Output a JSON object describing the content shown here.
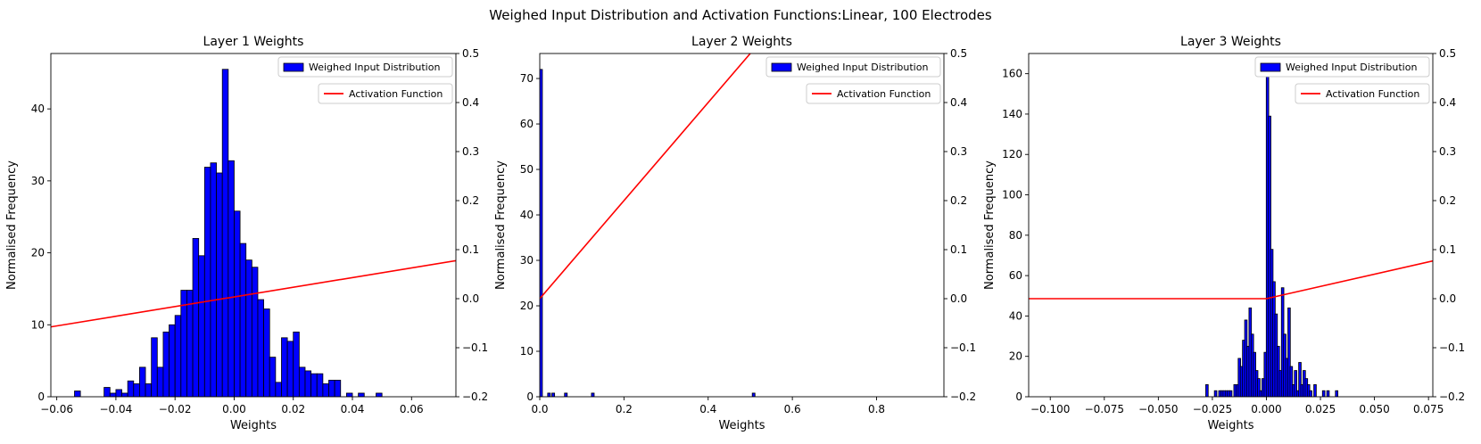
{
  "suptitle": "Weighed Input Distribution and Activation Functions:Linear, 100 Electrodes",
  "colors": {
    "bar_fill": "#0000ff",
    "bar_edge": "#000000",
    "activation_line": "#ff0000"
  },
  "chart_data": [
    {
      "type": "bar",
      "title": "Layer 1 Weights",
      "xlabel": "Weights",
      "ylabel": "Normalised Frequency",
      "xlim": [
        -0.062,
        0.075
      ],
      "ylim": [
        0,
        47.7
      ],
      "xticks": [
        -0.06,
        -0.04,
        -0.02,
        0.0,
        0.02,
        0.04,
        0.06
      ],
      "xtick_labels": [
        "−0.06",
        "−0.04",
        "−0.02",
        "0.00",
        "0.02",
        "0.04",
        "0.06"
      ],
      "yticks": [
        0,
        10,
        20,
        30,
        40
      ],
      "ytick_labels": [
        "0",
        "10",
        "20",
        "30",
        "40"
      ],
      "y2lim": [
        -0.2,
        0.5
      ],
      "y2ticks": [
        -0.2,
        -0.1,
        0.0,
        0.1,
        0.2,
        0.3,
        0.4,
        0.5
      ],
      "y2tick_labels": [
        "−0.2",
        "−0.1",
        "0.0",
        "0.1",
        "0.2",
        "0.3",
        "0.4",
        "0.5"
      ],
      "bin_width": 0.002,
      "bins": [
        [
          -0.053,
          0.8
        ],
        [
          -0.043,
          1.3
        ],
        [
          -0.041,
          0.5
        ],
        [
          -0.039,
          1.0
        ],
        [
          -0.037,
          0.5
        ],
        [
          -0.035,
          2.2
        ],
        [
          -0.033,
          1.8
        ],
        [
          -0.031,
          4.1
        ],
        [
          -0.029,
          1.8
        ],
        [
          -0.027,
          8.2
        ],
        [
          -0.025,
          4.1
        ],
        [
          -0.023,
          9.0
        ],
        [
          -0.021,
          10.0
        ],
        [
          -0.019,
          11.3
        ],
        [
          -0.017,
          14.8
        ],
        [
          -0.015,
          14.8
        ],
        [
          -0.013,
          22.0
        ],
        [
          -0.011,
          19.6
        ],
        [
          -0.009,
          31.9
        ],
        [
          -0.007,
          32.5
        ],
        [
          -0.005,
          31.1
        ],
        [
          -0.003,
          45.5
        ],
        [
          -0.001,
          32.8
        ],
        [
          0.001,
          25.8
        ],
        [
          0.003,
          21.3
        ],
        [
          0.005,
          19.0
        ],
        [
          0.007,
          18.0
        ],
        [
          0.009,
          13.5
        ],
        [
          0.011,
          12.2
        ],
        [
          0.013,
          5.5
        ],
        [
          0.015,
          2.0
        ],
        [
          0.017,
          8.2
        ],
        [
          0.019,
          7.7
        ],
        [
          0.021,
          9.0
        ],
        [
          0.023,
          4.1
        ],
        [
          0.025,
          3.6
        ],
        [
          0.027,
          3.2
        ],
        [
          0.029,
          3.2
        ],
        [
          0.031,
          1.8
        ],
        [
          0.033,
          2.3
        ],
        [
          0.035,
          2.3
        ],
        [
          0.039,
          0.5
        ],
        [
          0.043,
          0.5
        ],
        [
          0.049,
          0.5
        ]
      ],
      "legend": [
        {
          "label": "Weighed Input Distribution",
          "kind": "patch"
        },
        {
          "label": "Activation Function",
          "kind": "line"
        }
      ],
      "legend_placement": "top-right",
      "activation": {
        "x": [
          -0.062,
          0.075
        ],
        "y": [
          -0.0575,
          0.0775
        ]
      }
    },
    {
      "type": "bar",
      "title": "Layer 2 Weights",
      "xlabel": "Weights",
      "ylabel": "Normalised Frequency",
      "xlim": [
        0,
        0.96
      ],
      "ylim": [
        0,
        75.5
      ],
      "xticks": [
        0.0,
        0.2,
        0.4,
        0.6,
        0.8
      ],
      "xtick_labels": [
        "0.0",
        "0.2",
        "0.4",
        "0.6",
        "0.8"
      ],
      "yticks": [
        0,
        10,
        20,
        30,
        40,
        50,
        60,
        70
      ],
      "ytick_labels": [
        "0",
        "10",
        "20",
        "30",
        "40",
        "50",
        "60",
        "70"
      ],
      "y2lim": [
        -0.2,
        0.5
      ],
      "y2ticks": [
        -0.2,
        -0.1,
        0.0,
        0.1,
        0.2,
        0.3,
        0.4,
        0.5
      ],
      "y2tick_labels": [
        "−0.2",
        "−0.1",
        "0.0",
        "0.1",
        "0.2",
        "0.3",
        "0.4",
        "0.5"
      ],
      "bin_width": 0.0065,
      "bins": [
        [
          0.003,
          72.0
        ],
        [
          0.022,
          0.8
        ],
        [
          0.032,
          0.8
        ],
        [
          0.062,
          0.8
        ],
        [
          0.126,
          0.8
        ],
        [
          0.508,
          0.8
        ]
      ],
      "legend": [
        {
          "label": "Weighed Input Distribution",
          "kind": "patch"
        },
        {
          "label": "Activation Function",
          "kind": "line"
        }
      ],
      "legend_placement": "top-right",
      "activation": {
        "x": [
          0,
          0.5
        ],
        "y": [
          0.0,
          0.5
        ]
      }
    },
    {
      "type": "bar",
      "title": "Layer 3 Weights",
      "xlabel": "Weights",
      "ylabel": "Normalised Frequency",
      "xlim": [
        -0.11,
        0.077
      ],
      "ylim": [
        0,
        170
      ],
      "xticks": [
        -0.1,
        -0.075,
        -0.05,
        -0.025,
        0.0,
        0.025,
        0.05,
        0.075
      ],
      "xtick_labels": [
        "−0.100",
        "−0.075",
        "−0.050",
        "−0.025",
        "0.000",
        "0.025",
        "0.050",
        "0.075"
      ],
      "yticks": [
        0,
        20,
        40,
        60,
        80,
        100,
        120,
        140,
        160
      ],
      "ytick_labels": [
        "0",
        "20",
        "40",
        "60",
        "80",
        "100",
        "120",
        "140",
        "160"
      ],
      "y2lim": [
        -0.2,
        0.5
      ],
      "y2ticks": [
        -0.2,
        -0.1,
        0.0,
        0.1,
        0.2,
        0.3,
        0.4,
        0.5
      ],
      "y2tick_labels": [
        "−0.2",
        "−0.1",
        "0.0",
        "0.1",
        "0.2",
        "0.3",
        "0.4",
        "0.5"
      ],
      "bin_width": 0.00115,
      "bins": [
        [
          -0.0275,
          6
        ],
        [
          -0.0235,
          3
        ],
        [
          -0.0215,
          3
        ],
        [
          -0.0205,
          3
        ],
        [
          -0.0195,
          3
        ],
        [
          -0.0185,
          3
        ],
        [
          -0.0175,
          3
        ],
        [
          -0.0165,
          3
        ],
        [
          -0.0145,
          6
        ],
        [
          -0.0135,
          6
        ],
        [
          -0.0125,
          19
        ],
        [
          -0.0115,
          15
        ],
        [
          -0.0105,
          28
        ],
        [
          -0.0095,
          38
        ],
        [
          -0.0085,
          25
        ],
        [
          -0.0075,
          44
        ],
        [
          -0.0065,
          31
        ],
        [
          -0.0055,
          22
        ],
        [
          -0.0045,
          13
        ],
        [
          -0.0035,
          9
        ],
        [
          -0.0025,
          3
        ],
        [
          -0.0015,
          9
        ],
        [
          -0.0005,
          22
        ],
        [
          0.0005,
          168
        ],
        [
          0.0015,
          139
        ],
        [
          0.0025,
          73
        ],
        [
          0.0035,
          57
        ],
        [
          0.0045,
          41
        ],
        [
          0.0055,
          25
        ],
        [
          0.0065,
          13
        ],
        [
          0.0075,
          54
        ],
        [
          0.0085,
          31
        ],
        [
          0.0095,
          19
        ],
        [
          0.0105,
          44
        ],
        [
          0.0115,
          15
        ],
        [
          0.0125,
          6
        ],
        [
          0.0135,
          13
        ],
        [
          0.0145,
          3
        ],
        [
          0.0155,
          17
        ],
        [
          0.0165,
          6
        ],
        [
          0.0175,
          13
        ],
        [
          0.0185,
          9
        ],
        [
          0.0195,
          6
        ],
        [
          0.0205,
          3
        ],
        [
          0.0225,
          6
        ],
        [
          0.0265,
          3
        ],
        [
          0.0285,
          3
        ],
        [
          0.0325,
          3
        ]
      ],
      "legend": [
        {
          "label": "Weighed Input Distribution",
          "kind": "patch"
        },
        {
          "label": "Activation Function",
          "kind": "line"
        }
      ],
      "legend_placement": "top-right",
      "activation": {
        "x": [
          -0.11,
          0.0,
          0.077
        ],
        "y": [
          0.0,
          0.0,
          0.077
        ]
      }
    }
  ]
}
